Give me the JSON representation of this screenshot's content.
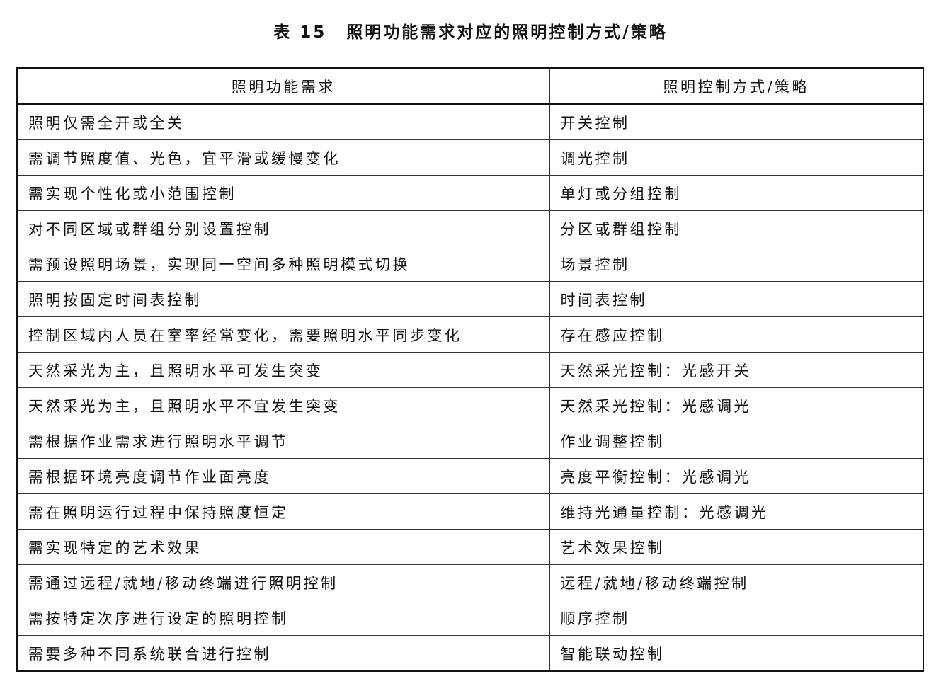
{
  "title": {
    "label": "表 15",
    "text": "照明功能需求对应的照明控制方式/策略"
  },
  "table": {
    "headers": [
      "照明功能需求",
      "照明控制方式/策略"
    ],
    "rows": [
      [
        "照明仅需全开或全关",
        "开关控制"
      ],
      [
        "需调节照度值、光色，宜平滑或缓慢变化",
        "调光控制"
      ],
      [
        "需实现个性化或小范围控制",
        "单灯或分组控制"
      ],
      [
        "对不同区域或群组分别设置控制",
        "分区或群组控制"
      ],
      [
        "需预设照明场景，实现同一空间多种照明模式切换",
        "场景控制"
      ],
      [
        "照明按固定时间表控制",
        "时间表控制"
      ],
      [
        "控制区域内人员在室率经常变化，需要照明水平同步变化",
        "存在感应控制"
      ],
      [
        "天然采光为主，且照明水平可发生突变",
        "天然采光控制：光感开关"
      ],
      [
        "天然采光为主，且照明水平不宜发生突变",
        "天然采光控制：光感调光"
      ],
      [
        "需根据作业需求进行照明水平调节",
        "作业调整控制"
      ],
      [
        "需根据环境亮度调节作业面亮度",
        "亮度平衡控制：光感调光"
      ],
      [
        "需在照明运行过程中保持照度恒定",
        "维持光通量控制：光感调光"
      ],
      [
        "需实现特定的艺术效果",
        "艺术效果控制"
      ],
      [
        "需通过远程/就地/移动终端进行照明控制",
        "远程/就地/移动终端控制"
      ],
      [
        "需按特定次序进行设定的照明控制",
        "顺序控制"
      ],
      [
        "需要多种不同系统联合进行控制",
        "智能联动控制"
      ]
    ]
  }
}
